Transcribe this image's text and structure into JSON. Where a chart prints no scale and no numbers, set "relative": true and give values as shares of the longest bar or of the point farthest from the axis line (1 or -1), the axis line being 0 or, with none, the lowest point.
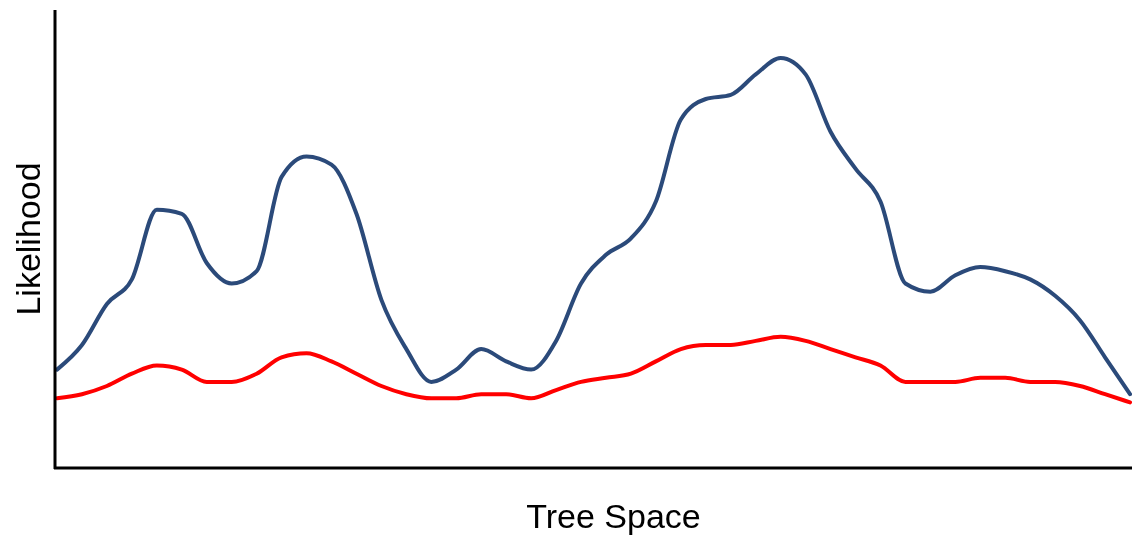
{
  "chart_data": {
    "type": "line",
    "relative": true,
    "xlabel": "Tree Space",
    "ylabel": "Likelihood",
    "line_style": "solid",
    "categories": [
      null,
      null,
      null,
      null,
      null,
      null,
      null,
      null,
      null,
      null,
      null,
      null,
      null,
      null,
      null,
      null,
      null,
      null,
      null,
      null,
      null,
      null,
      null,
      null,
      null,
      null,
      null,
      null,
      null,
      null,
      null,
      null,
      null,
      null,
      null,
      null,
      null,
      null,
      null,
      null,
      null,
      null,
      null,
      null
    ],
    "series": [
      {
        "color": "#2b4a7a",
        "values": [
          0.24,
          0.3,
          0.4,
          0.46,
          0.63,
          0.62,
          0.5,
          0.45,
          0.48,
          0.71,
          0.76,
          0.74,
          0.62,
          0.41,
          0.29,
          0.21,
          0.24,
          0.29,
          0.26,
          0.24,
          0.31,
          0.45,
          0.52,
          0.56,
          0.65,
          0.85,
          0.9,
          0.91,
          0.96,
          1,
          0.96,
          0.82,
          0.73,
          0.65,
          0.45,
          0.43,
          0.47,
          0.49,
          0.48,
          0.46,
          0.42,
          0.36,
          0.27,
          0.18
        ]
      },
      {
        "color": "#ff0000",
        "values": [
          0.17,
          0.18,
          0.2,
          0.23,
          0.25,
          0.24,
          0.21,
          0.21,
          0.23,
          0.27,
          0.28,
          0.26,
          0.23,
          0.2,
          0.18,
          0.17,
          0.17,
          0.18,
          0.18,
          0.17,
          0.19,
          0.21,
          0.22,
          0.23,
          0.26,
          0.29,
          0.3,
          0.3,
          0.31,
          0.32,
          0.31,
          0.29,
          0.27,
          0.25,
          0.21,
          0.21,
          0.21,
          0.22,
          0.22,
          0.21,
          0.21,
          0.2,
          0.18,
          0.16
        ]
      }
    ]
  }
}
